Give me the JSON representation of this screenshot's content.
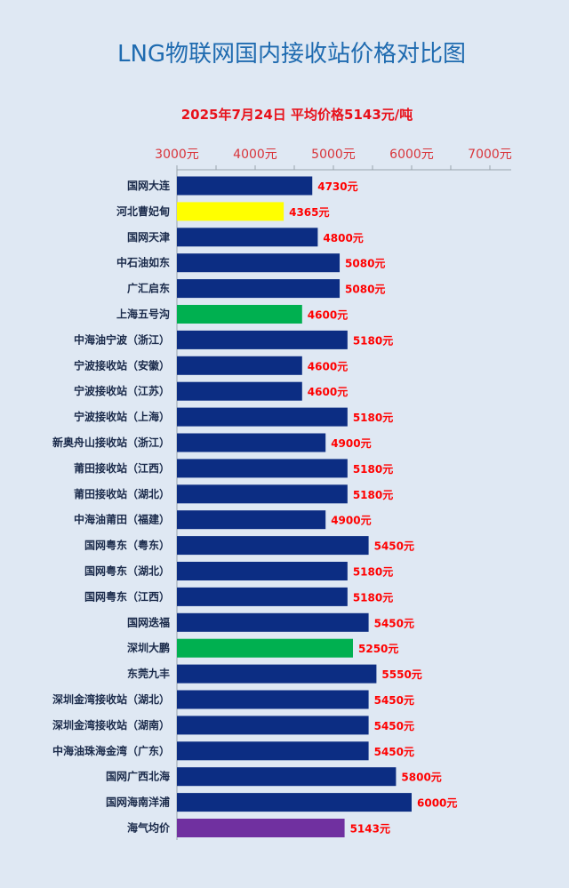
{
  "chart_data": {
    "type": "bar",
    "orientation": "horizontal",
    "title": "LNG物联网国内接收站价格对比图",
    "subtitle": "2025年7月24日 平均价格5143元/吨",
    "xlim": [
      3000,
      7000
    ],
    "ticks": [
      3000,
      4000,
      5000,
      6000,
      7000
    ],
    "tick_labels": [
      "3000元",
      "4000元",
      "5000元",
      "6000元",
      "7000元"
    ],
    "grid": false,
    "categories": [
      "国网大连",
      "河北曹妃甸",
      "国网天津",
      "中石油如东",
      "广汇启东",
      "上海五号沟",
      "中海油宁波（浙江）",
      "宁波接收站（安徽）",
      "宁波接收站（江苏）",
      "宁波接收站（上海）",
      "新奥舟山接收站（浙江）",
      "莆田接收站（江西）",
      "莆田接收站（湖北）",
      "中海油莆田（福建）",
      "国网粤东（粤东）",
      "国网粤东（湖北）",
      "国网粤东（江西）",
      "国网迭福",
      "深圳大鹏",
      "东莞九丰",
      "深圳金湾接收站（湖北）",
      "深圳金湾接收站（湖南）",
      "中海油珠海金湾（广东）",
      "国网广西北海",
      "国网海南洋浦",
      "海气均价"
    ],
    "values": [
      4730,
      4365,
      4800,
      5080,
      5080,
      4600,
      5180,
      4600,
      4600,
      5180,
      4900,
      5180,
      5180,
      4900,
      5450,
      5180,
      5180,
      5450,
      5250,
      5550,
      5450,
      5450,
      5450,
      5800,
      6000,
      5143
    ],
    "value_labels": [
      "4730元",
      "4365元",
      "4800元",
      "5080元",
      "5080元",
      "4600元",
      "5180元",
      "4600元",
      "4600元",
      "5180元",
      "4900元",
      "5180元",
      "5180元",
      "4900元",
      "5450元",
      "5180元",
      "5180元",
      "5450元",
      "5250元",
      "5550元",
      "5450元",
      "5450元",
      "5450元",
      "5800元",
      "6000元",
      "5143元"
    ],
    "bar_colors": [
      "#0c2d83",
      "#ffff00",
      "#0c2d83",
      "#0c2d83",
      "#0c2d83",
      "#00b050",
      "#0c2d83",
      "#0c2d83",
      "#0c2d83",
      "#0c2d83",
      "#0c2d83",
      "#0c2d83",
      "#0c2d83",
      "#0c2d83",
      "#0c2d83",
      "#0c2d83",
      "#0c2d83",
      "#0c2d83",
      "#00b050",
      "#0c2d83",
      "#0c2d83",
      "#0c2d83",
      "#0c2d83",
      "#0c2d83",
      "#0c2d83",
      "#7030a0"
    ]
  },
  "colors": {
    "background": "#dfe8f3",
    "title": "#1f6bb0",
    "subtitle": "#e8101a",
    "tick": "#d9343a",
    "value_label": "#ff0000",
    "default_bar": "#0c2d83"
  }
}
